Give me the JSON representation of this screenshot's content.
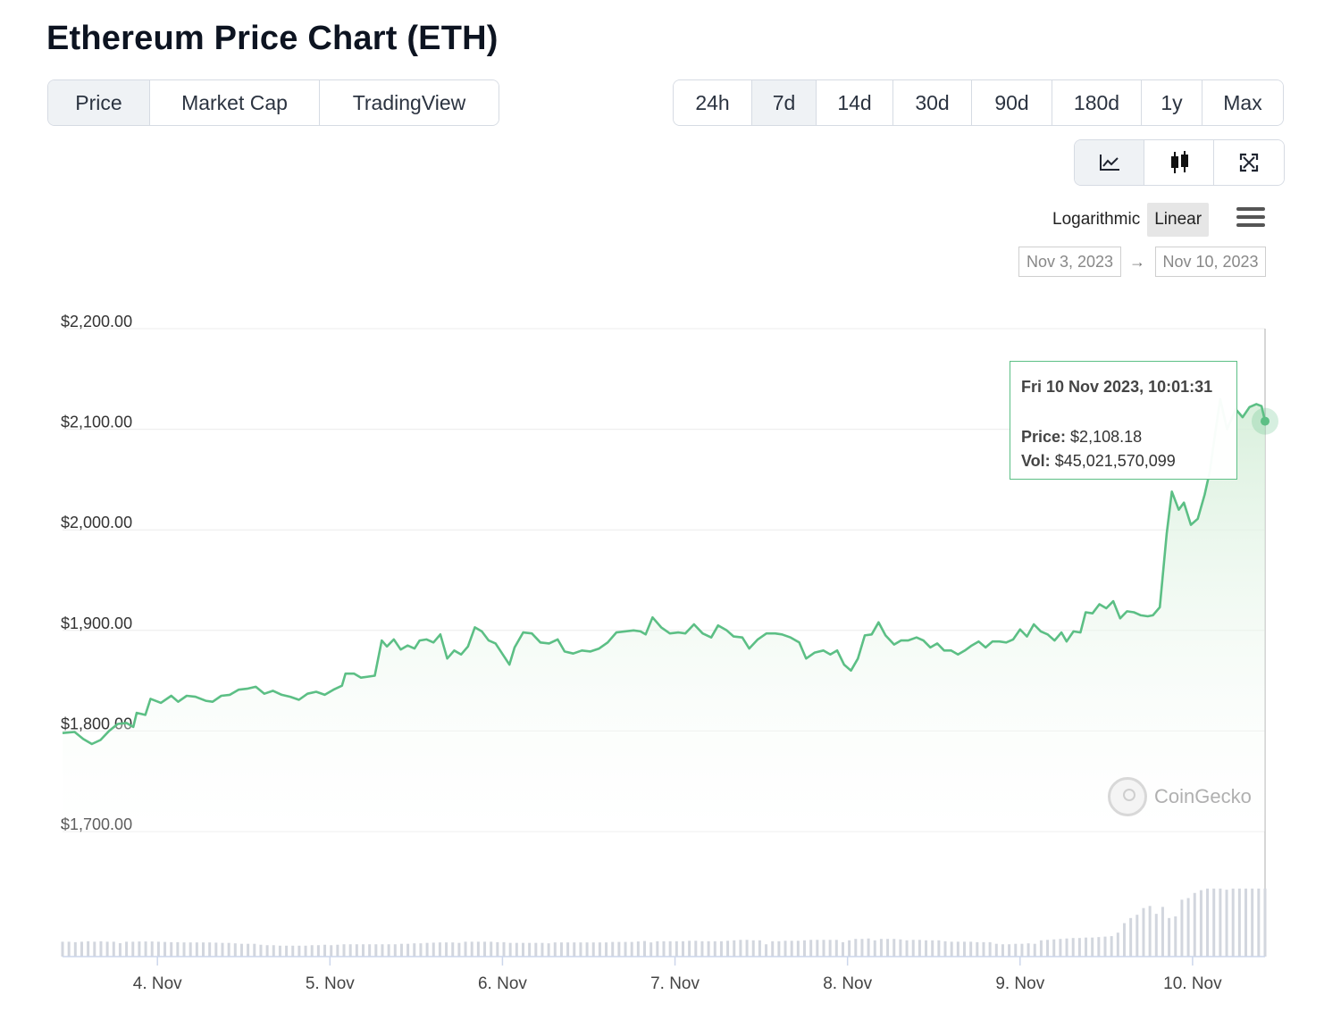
{
  "title": "Ethereum Price Chart (ETH)",
  "tabs": [
    {
      "label": "Price",
      "active": true
    },
    {
      "label": "Market Cap",
      "active": false
    },
    {
      "label": "TradingView",
      "active": false
    }
  ],
  "ranges": [
    {
      "label": "24h",
      "active": false
    },
    {
      "label": "7d",
      "active": true
    },
    {
      "label": "14d",
      "active": false
    },
    {
      "label": "30d",
      "active": false
    },
    {
      "label": "90d",
      "active": false
    },
    {
      "label": "180d",
      "active": false
    },
    {
      "label": "1y",
      "active": false
    },
    {
      "label": "Max",
      "active": false
    }
  ],
  "view_buttons": [
    {
      "icon": "line-chart-icon",
      "active": true
    },
    {
      "icon": "candlestick-icon",
      "active": false
    },
    {
      "icon": "fullscreen-icon",
      "active": false
    }
  ],
  "scale": {
    "logarithmic": "Logarithmic",
    "linear": "Linear",
    "selected": "Linear"
  },
  "date_range": {
    "from": "Nov 3, 2023",
    "to": "Nov 10, 2023",
    "arrow": "→"
  },
  "tooltip": {
    "date": "Fri 10 Nov 2023, 10:01:31",
    "price_label": "Price:",
    "price_value": "$2,108.18",
    "vol_label": "Vol:",
    "vol_value": "$45,021,570,099"
  },
  "watermark": "CoinGecko",
  "colors": {
    "line": "#5cbf85",
    "area_top": "#d9f0dd",
    "volume": "#d2d6de",
    "grid": "#ececec"
  },
  "chart_data": {
    "type": "area",
    "ylim": [
      1700,
      2200
    ],
    "y_ticks": [
      "$2,200.00",
      "$2,100.00",
      "$2,000.00",
      "$1,900.00",
      "$1,800.00",
      "$1,700.00"
    ],
    "y_tick_values": [
      2200,
      2100,
      2000,
      1900,
      1800,
      1700
    ],
    "x_ticks": [
      "4. Nov",
      "5. Nov",
      "6. Nov",
      "7. Nov",
      "8. Nov",
      "9. Nov",
      "10. Nov"
    ],
    "x_tick_values": [
      1,
      2,
      3,
      4,
      5,
      6,
      7
    ],
    "x_range": [
      0.45,
      7.42
    ],
    "series": [
      {
        "values": [
          [
            0.45,
            1798
          ],
          [
            0.52,
            1799
          ],
          [
            0.57,
            1792
          ],
          [
            0.62,
            1787
          ],
          [
            0.67,
            1791
          ],
          [
            0.72,
            1800
          ],
          [
            0.77,
            1807
          ],
          [
            0.82,
            1808
          ],
          [
            0.86,
            1804
          ],
          [
            0.88,
            1818
          ],
          [
            0.93,
            1816
          ],
          [
            0.96,
            1832
          ],
          [
            1.02,
            1828
          ],
          [
            1.08,
            1835
          ],
          [
            1.12,
            1829
          ],
          [
            1.17,
            1835
          ],
          [
            1.22,
            1834
          ],
          [
            1.28,
            1830
          ],
          [
            1.32,
            1829
          ],
          [
            1.37,
            1835
          ],
          [
            1.42,
            1836
          ],
          [
            1.47,
            1841
          ],
          [
            1.52,
            1842
          ],
          [
            1.57,
            1844
          ],
          [
            1.62,
            1837
          ],
          [
            1.67,
            1840
          ],
          [
            1.72,
            1836
          ],
          [
            1.77,
            1834
          ],
          [
            1.82,
            1831
          ],
          [
            1.87,
            1837
          ],
          [
            1.92,
            1839
          ],
          [
            1.97,
            1836
          ],
          [
            2.02,
            1841
          ],
          [
            2.07,
            1845
          ],
          [
            2.09,
            1857
          ],
          [
            2.14,
            1857
          ],
          [
            2.18,
            1853
          ],
          [
            2.22,
            1854
          ],
          [
            2.26,
            1855
          ],
          [
            2.3,
            1890
          ],
          [
            2.33,
            1884
          ],
          [
            2.37,
            1891
          ],
          [
            2.41,
            1881
          ],
          [
            2.45,
            1885
          ],
          [
            2.49,
            1882
          ],
          [
            2.52,
            1890
          ],
          [
            2.56,
            1891
          ],
          [
            2.6,
            1888
          ],
          [
            2.64,
            1896
          ],
          [
            2.68,
            1872
          ],
          [
            2.72,
            1880
          ],
          [
            2.76,
            1876
          ],
          [
            2.8,
            1884
          ],
          [
            2.84,
            1903
          ],
          [
            2.88,
            1899
          ],
          [
            2.92,
            1890
          ],
          [
            2.96,
            1887
          ],
          [
            3.04,
            1866
          ],
          [
            3.07,
            1883
          ],
          [
            3.12,
            1898
          ],
          [
            3.17,
            1897
          ],
          [
            3.22,
            1888
          ],
          [
            3.27,
            1887
          ],
          [
            3.32,
            1891
          ],
          [
            3.36,
            1879
          ],
          [
            3.41,
            1877
          ],
          [
            3.46,
            1880
          ],
          [
            3.51,
            1879
          ],
          [
            3.56,
            1882
          ],
          [
            3.61,
            1888
          ],
          [
            3.66,
            1898
          ],
          [
            3.71,
            1899
          ],
          [
            3.76,
            1900
          ],
          [
            3.8,
            1899
          ],
          [
            3.83,
            1896
          ],
          [
            3.87,
            1913
          ],
          [
            3.92,
            1903
          ],
          [
            3.97,
            1897
          ],
          [
            4.02,
            1898
          ],
          [
            4.06,
            1897
          ],
          [
            4.11,
            1906
          ],
          [
            4.16,
            1897
          ],
          [
            4.21,
            1893
          ],
          [
            4.25,
            1905
          ],
          [
            4.3,
            1900
          ],
          [
            4.34,
            1894
          ],
          [
            4.39,
            1893
          ],
          [
            4.43,
            1882
          ],
          [
            4.48,
            1891
          ],
          [
            4.53,
            1897
          ],
          [
            4.58,
            1897
          ],
          [
            4.62,
            1896
          ],
          [
            4.67,
            1893
          ],
          [
            4.72,
            1888
          ],
          [
            4.76,
            1872
          ],
          [
            4.81,
            1878
          ],
          [
            4.86,
            1880
          ],
          [
            4.9,
            1876
          ],
          [
            4.94,
            1880
          ],
          [
            4.98,
            1866
          ],
          [
            5.02,
            1860
          ],
          [
            5.06,
            1872
          ],
          [
            5.1,
            1895
          ],
          [
            5.14,
            1896
          ],
          [
            5.18,
            1908
          ],
          [
            5.22,
            1895
          ],
          [
            5.27,
            1886
          ],
          [
            5.31,
            1890
          ],
          [
            5.35,
            1890
          ],
          [
            5.4,
            1893
          ],
          [
            5.44,
            1890
          ],
          [
            5.48,
            1883
          ],
          [
            5.52,
            1887
          ],
          [
            5.56,
            1880
          ],
          [
            5.6,
            1880
          ],
          [
            5.64,
            1876
          ],
          [
            5.68,
            1880
          ],
          [
            5.72,
            1885
          ],
          [
            5.76,
            1889
          ],
          [
            5.8,
            1883
          ],
          [
            5.84,
            1889
          ],
          [
            5.88,
            1889
          ],
          [
            5.92,
            1888
          ],
          [
            5.96,
            1891
          ],
          [
            6.0,
            1901
          ],
          [
            6.04,
            1894
          ],
          [
            6.08,
            1906
          ],
          [
            6.12,
            1899
          ],
          [
            6.16,
            1896
          ],
          [
            6.2,
            1890
          ],
          [
            6.24,
            1898
          ],
          [
            6.27,
            1889
          ],
          [
            6.31,
            1899
          ],
          [
            6.35,
            1898
          ],
          [
            6.38,
            1918
          ],
          [
            6.42,
            1917
          ],
          [
            6.46,
            1926
          ],
          [
            6.5,
            1922
          ],
          [
            6.54,
            1929
          ],
          [
            6.58,
            1912
          ],
          [
            6.62,
            1919
          ],
          [
            6.66,
            1918
          ],
          [
            6.7,
            1915
          ],
          [
            6.74,
            1914
          ],
          [
            6.77,
            1915
          ],
          [
            6.81,
            1923
          ],
          [
            6.85,
            1996
          ],
          [
            6.88,
            2038
          ],
          [
            6.92,
            2020
          ],
          [
            6.95,
            2027
          ],
          [
            6.99,
            2005
          ],
          [
            7.03,
            2011
          ],
          [
            7.07,
            2035
          ],
          [
            7.1,
            2058
          ],
          [
            7.13,
            2095
          ],
          [
            7.16,
            2130
          ],
          [
            7.2,
            2100
          ],
          [
            7.25,
            2120
          ],
          [
            7.29,
            2112
          ],
          [
            7.33,
            2122
          ],
          [
            7.37,
            2125
          ],
          [
            7.4,
            2123
          ],
          [
            7.42,
            2108
          ]
        ]
      }
    ],
    "volume_relative": [
      0.64,
      0.64,
      0.62,
      0.64,
      0.66,
      0.64,
      0.66,
      0.64,
      0.64,
      0.58,
      0.64,
      0.64,
      0.65,
      0.65,
      0.65,
      0.64,
      0.63,
      0.62,
      0.62,
      0.61,
      0.61,
      0.61,
      0.61,
      0.61,
      0.6,
      0.59,
      0.59,
      0.57,
      0.55,
      0.55,
      0.55,
      0.51,
      0.49,
      0.49,
      0.47,
      0.47,
      0.47,
      0.47,
      0.47,
      0.49,
      0.49,
      0.51,
      0.49,
      0.51,
      0.53,
      0.53,
      0.53,
      0.53,
      0.53,
      0.53,
      0.53,
      0.53,
      0.53,
      0.55,
      0.55,
      0.57,
      0.57,
      0.59,
      0.6,
      0.61,
      0.61,
      0.61,
      0.59,
      0.64,
      0.64,
      0.64,
      0.64,
      0.64,
      0.62,
      0.62,
      0.59,
      0.59,
      0.59,
      0.59,
      0.59,
      0.59,
      0.57,
      0.61,
      0.61,
      0.61,
      0.61,
      0.61,
      0.61,
      0.61,
      0.61,
      0.61,
      0.63,
      0.63,
      0.63,
      0.63,
      0.65,
      0.67,
      0.61,
      0.66,
      0.66,
      0.66,
      0.66,
      0.66,
      0.68,
      0.68,
      0.66,
      0.66,
      0.66,
      0.66,
      0.68,
      0.7,
      0.72,
      0.72,
      0.7,
      0.7,
      0.53,
      0.66,
      0.66,
      0.68,
      0.68,
      0.68,
      0.7,
      0.72,
      0.72,
      0.72,
      0.72,
      0.72,
      0.62,
      0.7,
      0.76,
      0.76,
      0.78,
      0.7,
      0.76,
      0.76,
      0.76,
      0.74,
      0.7,
      0.72,
      0.72,
      0.7,
      0.7,
      0.7,
      0.66,
      0.64,
      0.64,
      0.64,
      0.64,
      0.62,
      0.62,
      0.62,
      0.55,
      0.53,
      0.53,
      0.55,
      0.55,
      0.57,
      0.55,
      0.7,
      0.72,
      0.74,
      0.76,
      0.78,
      0.8,
      0.8,
      0.82,
      0.82,
      0.84,
      0.86,
      0.88,
      1.03,
      1.44,
      1.66,
      1.8,
      2.09,
      2.18,
      1.84,
      2.14,
      1.66,
      1.73,
      2.45,
      2.52,
      2.74,
      2.86,
      2.93,
      2.93,
      2.93,
      2.88,
      2.93,
      2.93,
      2.93,
      2.93,
      2.93,
      2.93
    ]
  }
}
